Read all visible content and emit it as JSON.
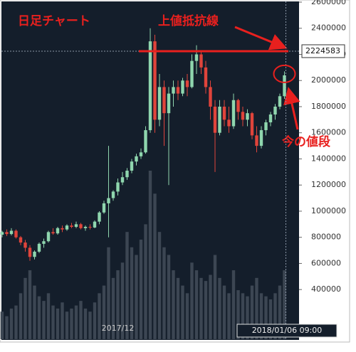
{
  "chart_data": {
    "type": "candlestick",
    "annotations": {
      "title": "日足チャート",
      "resistance": "上値抵抗線",
      "current": "今の値段"
    },
    "categories": [
      null,
      null,
      null,
      null,
      null,
      null,
      null,
      null,
      null,
      null,
      null,
      null,
      null,
      null,
      null,
      null,
      null,
      null,
      null,
      null,
      null,
      null,
      null,
      null,
      null,
      "2017/12",
      null,
      null,
      null,
      null,
      null,
      null,
      null,
      null,
      null,
      null,
      null,
      null,
      null,
      null,
      null,
      null,
      null,
      null,
      null,
      null,
      null,
      null,
      null,
      null,
      null,
      null,
      null,
      null,
      null,
      null,
      null,
      null,
      null,
      null,
      null,
      null
    ],
    "open": [
      820000,
      840000,
      825000,
      850000,
      800000,
      760000,
      720000,
      650000,
      690000,
      750000,
      770000,
      840000,
      830000,
      870000,
      860000,
      890000,
      880000,
      900000,
      870000,
      880000,
      875000,
      920000,
      990000,
      1060000,
      1100000,
      1150000,
      1220000,
      1260000,
      1310000,
      1380000,
      1420000,
      1450000,
      1620000,
      2300000,
      1700000,
      1950000,
      1750000,
      1900000,
      1950000,
      1900000,
      2000000,
      1950000,
      2150000,
      2200000,
      2100000,
      1950000,
      1800000,
      1600000,
      1800000,
      1700000,
      1650000,
      1850000,
      1760000,
      1700000,
      1750000,
      1580000,
      1500000,
      1620000,
      1680000,
      1740000,
      1800000,
      1880000
    ],
    "high": [
      850000,
      860000,
      870000,
      860000,
      810000,
      780000,
      740000,
      700000,
      760000,
      790000,
      850000,
      870000,
      880000,
      890000,
      900000,
      910000,
      920000,
      910000,
      890000,
      900000,
      930000,
      1000000,
      1080000,
      1500000,
      1160000,
      1250000,
      1300000,
      1330000,
      1400000,
      1440000,
      1480000,
      1650000,
      2400000,
      2350000,
      2050000,
      2000000,
      1950000,
      2000000,
      2000000,
      2020000,
      2050000,
      2200000,
      2270000,
      2230000,
      2150000,
      2000000,
      1850000,
      1850000,
      1850000,
      1800000,
      1900000,
      1860000,
      1800000,
      1780000,
      1760000,
      1650000,
      1650000,
      1700000,
      1760000,
      1820000,
      1900000,
      2070000
    ],
    "low": [
      800000,
      810000,
      815000,
      790000,
      740000,
      690000,
      620000,
      630000,
      680000,
      720000,
      760000,
      820000,
      820000,
      840000,
      850000,
      870000,
      870000,
      860000,
      850000,
      860000,
      870000,
      900000,
      980000,
      800000,
      1080000,
      1120000,
      1200000,
      1240000,
      1290000,
      1350000,
      1400000,
      1440000,
      1600000,
      1600000,
      1650000,
      1500000,
      1200000,
      1800000,
      1850000,
      1880000,
      1880000,
      1940000,
      2050000,
      2050000,
      1900000,
      1700000,
      1300000,
      1580000,
      1650000,
      1600000,
      1630000,
      1700000,
      1650000,
      1650000,
      1550000,
      1450000,
      1480000,
      1580000,
      1650000,
      1700000,
      1780000,
      1860000
    ],
    "close": [
      840000,
      825000,
      850000,
      800000,
      760000,
      720000,
      650000,
      690000,
      750000,
      770000,
      840000,
      830000,
      870000,
      860000,
      890000,
      880000,
      900000,
      870000,
      880000,
      875000,
      920000,
      990000,
      1060000,
      1100000,
      1150000,
      1220000,
      1260000,
      1310000,
      1380000,
      1420000,
      1450000,
      1620000,
      2300000,
      1700000,
      1950000,
      1750000,
      1900000,
      1950000,
      1900000,
      2000000,
      1950000,
      2150000,
      2200000,
      2100000,
      1950000,
      1800000,
      1600000,
      1800000,
      1700000,
      1650000,
      1850000,
      1760000,
      1700000,
      1750000,
      1580000,
      1500000,
      1620000,
      1680000,
      1740000,
      1800000,
      1880000,
      2040000
    ],
    "volume": [
      18,
      15,
      20,
      22,
      30,
      40,
      45,
      35,
      28,
      25,
      30,
      22,
      20,
      24,
      18,
      20,
      22,
      25,
      20,
      18,
      24,
      30,
      35,
      60,
      40,
      45,
      50,
      70,
      60,
      55,
      65,
      75,
      110,
      95,
      70,
      60,
      55,
      45,
      40,
      35,
      30,
      50,
      45,
      40,
      38,
      42,
      55,
      40,
      35,
      30,
      45,
      32,
      30,
      28,
      35,
      40,
      30,
      28,
      26,
      30,
      35,
      45
    ],
    "volume_lim": [
      0,
      220
    ],
    "up_color": "#8fd6ae",
    "down_color": "#e0443b",
    "volume_color": "#3c4653",
    "ylim": [
      20000,
      2600000
    ],
    "yticks": [
      400000,
      600000,
      800000,
      1000000,
      1200000,
      1400000,
      1600000,
      1800000,
      2000000,
      2200000,
      2400000,
      2600000
    ],
    "crosshair": {
      "value": 2224583,
      "time": "2018/01/06 09:00"
    }
  }
}
